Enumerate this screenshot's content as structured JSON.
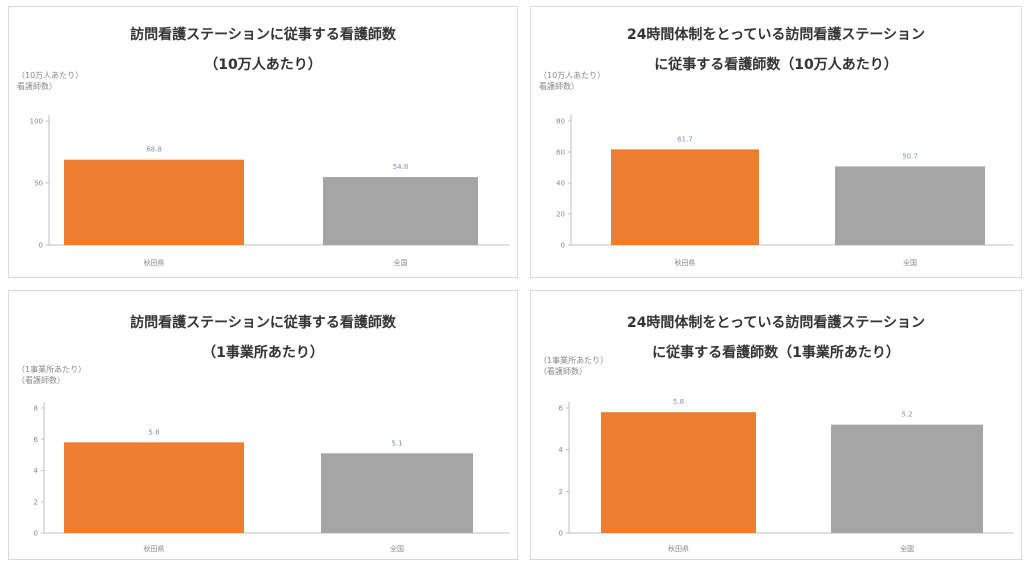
{
  "chart_data": [
    {
      "type": "bar",
      "title_line1": "訪問看護ステーションに従事する看護師数",
      "title_line2": "（10万人あたり）",
      "unit_line1": "（10万人あたり）",
      "unit_line2": "看護師数）",
      "categories": [
        "秋田県",
        "全国"
      ],
      "values": [
        68.8,
        54.8
      ],
      "value_labels": [
        "68.8",
        "54.8"
      ],
      "ylim": [
        0,
        100
      ],
      "yticks": [
        0,
        50,
        100
      ],
      "ytick_labels": [
        "0",
        "50",
        "100"
      ],
      "colors": [
        "#ed7d31",
        "#a5a5a5"
      ]
    },
    {
      "type": "bar",
      "title_line1": "24時間体制をとっている訪問看護ステーション",
      "title_line2": "に従事する看護師数（10万人あたり）",
      "unit_line1": "（10万人あたり）",
      "unit_line2": "看護師数）",
      "categories": [
        "秋田県",
        "全国"
      ],
      "values": [
        61.7,
        50.7
      ],
      "value_labels": [
        "61.7",
        "50.7"
      ],
      "ylim": [
        0,
        80
      ],
      "yticks": [
        0,
        20,
        40,
        60,
        80
      ],
      "ytick_labels": [
        "0",
        "20",
        "40",
        "60",
        "80"
      ],
      "colors": [
        "#ed7d31",
        "#a5a5a5"
      ]
    },
    {
      "type": "bar",
      "title_line1": "訪問看護ステーションに従事する看護師数",
      "title_line2": "（1事業所あたり）",
      "unit_line1": "（1事業所あたり）",
      "unit_line2": "（看護師数）",
      "categories": [
        "秋田県",
        "全国"
      ],
      "values": [
        5.8,
        5.1
      ],
      "value_labels": [
        "5.8",
        "5.1"
      ],
      "ylim": [
        0,
        8
      ],
      "yticks": [
        0,
        2,
        4,
        6,
        8
      ],
      "ytick_labels": [
        "0",
        "2",
        "4",
        "6",
        "8"
      ],
      "colors": [
        "#ed7d31",
        "#a5a5a5"
      ]
    },
    {
      "type": "bar",
      "title_line1": "24時間体制をとっている訪問看護ステーション",
      "title_line2": "に従事する看護師数（1事業所あたり）",
      "unit_line1": "（1事業所あたり）",
      "unit_line2": "（看護師数）",
      "categories": [
        "秋田県",
        "全国"
      ],
      "values": [
        5.8,
        5.2
      ],
      "value_labels": [
        "5.8",
        "5.2"
      ],
      "ylim": [
        0,
        6
      ],
      "yticks": [
        0,
        2,
        4,
        6
      ],
      "ytick_labels": [
        "0",
        "2",
        "4",
        "6"
      ],
      "colors": [
        "#ed7d31",
        "#a5a5a5"
      ]
    }
  ]
}
